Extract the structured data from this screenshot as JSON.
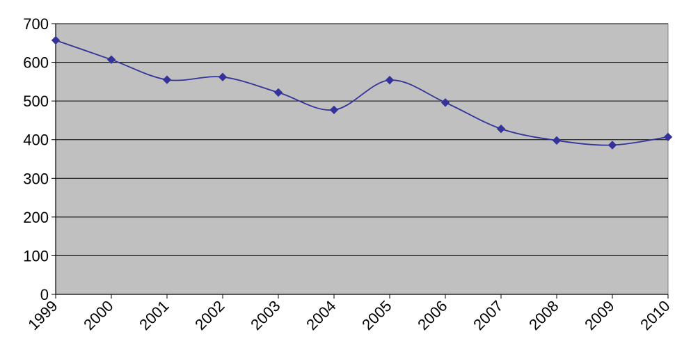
{
  "chart_data": {
    "type": "line",
    "title": "",
    "xlabel": "",
    "ylabel": "",
    "categories": [
      "1999",
      "2000",
      "2001",
      "2002",
      "2003",
      "2004",
      "2005",
      "2006",
      "2007",
      "2008",
      "2009",
      "2010"
    ],
    "series": [
      {
        "values": [
          657,
          607,
          555,
          562,
          522,
          477,
          554,
          496,
          428,
          398,
          386,
          407
        ],
        "color": "#333399",
        "marker": "diamond",
        "smooth": true
      }
    ],
    "ylim": [
      0,
      700
    ],
    "yticks": [
      0,
      100,
      200,
      300,
      400,
      500,
      600,
      700
    ],
    "grid": true,
    "legend": "none",
    "plot_background": "#c0c0c0"
  }
}
